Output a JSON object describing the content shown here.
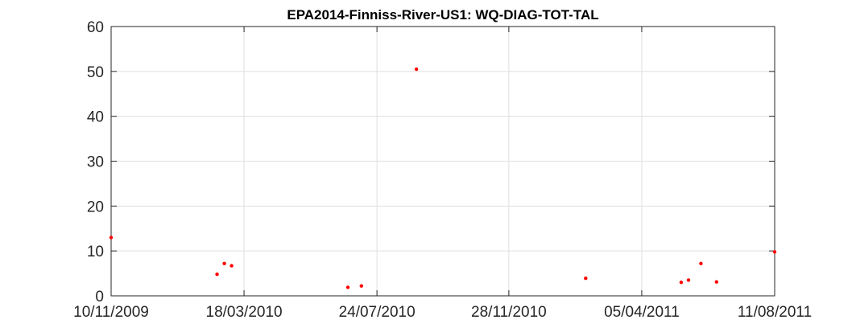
{
  "chart_data": {
    "type": "scatter",
    "title": "EPA2014-Finniss-River-US1: WQ-DIAG-TOT-TAL",
    "xlabel": "",
    "ylabel": "",
    "x_axis_type": "date",
    "xlim": [
      "2009-11-10",
      "2011-08-11"
    ],
    "ylim": [
      0,
      60
    ],
    "xticks": [
      {
        "date": "2009-11-10",
        "label": "10/11/2009"
      },
      {
        "date": "2010-03-18",
        "label": "18/03/2010"
      },
      {
        "date": "2010-07-24",
        "label": "24/07/2010"
      },
      {
        "date": "2010-11-28",
        "label": "28/11/2010"
      },
      {
        "date": "2011-04-05",
        "label": "05/04/2011"
      },
      {
        "date": "2011-08-11",
        "label": "11/08/2011"
      }
    ],
    "yticks": [
      0,
      10,
      20,
      30,
      40,
      50,
      60
    ],
    "grid": true,
    "legend": "none",
    "marker_color": "#ff0000",
    "series": [
      {
        "points": [
          {
            "x": "2009-11-10",
            "y": 13.0
          },
          {
            "x": "2010-02-20",
            "y": 4.8
          },
          {
            "x": "2010-02-27",
            "y": 7.2
          },
          {
            "x": "2010-03-06",
            "y": 6.7
          },
          {
            "x": "2010-06-26",
            "y": 1.9
          },
          {
            "x": "2010-07-09",
            "y": 2.2
          },
          {
            "x": "2010-08-31",
            "y": 50.5
          },
          {
            "x": "2011-02-10",
            "y": 3.9
          },
          {
            "x": "2011-05-13",
            "y": 3.0
          },
          {
            "x": "2011-05-20",
            "y": 3.5
          },
          {
            "x": "2011-06-01",
            "y": 7.2
          },
          {
            "x": "2011-06-16",
            "y": 3.1
          },
          {
            "x": "2011-08-11",
            "y": 9.8
          }
        ]
      }
    ]
  }
}
